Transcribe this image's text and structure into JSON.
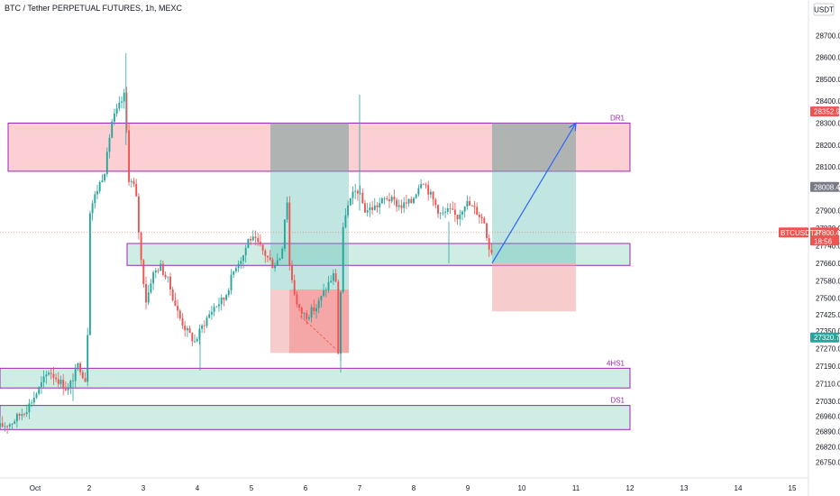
{
  "header": {
    "title": "BTC / Tether PERPETUAL FUTURES, 1h, MEXC",
    "currency": "USDT"
  },
  "colors": {
    "up": "#26a69a",
    "down": "#ef5350",
    "zone_red": "#f7a8ae",
    "zone_green": "#a8dccf",
    "zone_border": "#9c27b0",
    "arrow": "#2962ff",
    "gray": "#9e9e9e"
  },
  "chart_data": {
    "type": "candlestick",
    "title": "BTC / Tether PERPETUAL FUTURES, 1h, MEXC",
    "ylim": [
      26720,
      28780
    ],
    "xlim": [
      0.35,
      15.3
    ],
    "y_ticks": [
      26750,
      26820,
      26890,
      26960,
      27030,
      27110,
      27190,
      27270,
      27350,
      27425,
      27500,
      27580,
      27660,
      27740,
      27820,
      27900,
      28000,
      28100,
      28200,
      28300,
      28400,
      28500,
      28600,
      28700
    ],
    "x_ticks": [
      {
        "label": "Oct",
        "x": 1
      },
      {
        "label": "2",
        "x": 2
      },
      {
        "label": "3",
        "x": 3
      },
      {
        "label": "4",
        "x": 4
      },
      {
        "label": "5",
        "x": 5
      },
      {
        "label": "6",
        "x": 6
      },
      {
        "label": "7",
        "x": 7
      },
      {
        "label": "8",
        "x": 8
      },
      {
        "label": "9",
        "x": 9
      },
      {
        "label": "10",
        "x": 10
      },
      {
        "label": "11",
        "x": 11
      },
      {
        "label": "12",
        "x": 12
      },
      {
        "label": "13",
        "x": 13
      },
      {
        "label": "14",
        "x": 14
      },
      {
        "label": "15",
        "x": 15
      }
    ],
    "price_path": [
      [
        0.35,
        26910
      ],
      [
        0.6,
        26930
      ],
      [
        0.9,
        27000
      ],
      [
        1.1,
        27080
      ],
      [
        1.3,
        27170
      ],
      [
        1.5,
        27120
      ],
      [
        1.65,
        27080
      ],
      [
        1.85,
        27200
      ],
      [
        2.0,
        27110
      ],
      [
        2.05,
        27900
      ],
      [
        2.2,
        28000
      ],
      [
        2.35,
        28100
      ],
      [
        2.45,
        28300
      ],
      [
        2.55,
        28350
      ],
      [
        2.7,
        28430
      ],
      [
        2.78,
        28050
      ],
      [
        2.9,
        28000
      ],
      [
        3.0,
        27680
      ],
      [
        3.1,
        27480
      ],
      [
        3.2,
        27600
      ],
      [
        3.35,
        27650
      ],
      [
        3.5,
        27580
      ],
      [
        3.7,
        27420
      ],
      [
        3.85,
        27350
      ],
      [
        4.0,
        27300
      ],
      [
        4.15,
        27380
      ],
      [
        4.35,
        27460
      ],
      [
        4.55,
        27500
      ],
      [
        4.75,
        27650
      ],
      [
        4.9,
        27700
      ],
      [
        5.0,
        27780
      ],
      [
        5.15,
        27750
      ],
      [
        5.3,
        27700
      ],
      [
        5.45,
        27650
      ],
      [
        5.6,
        27700
      ],
      [
        5.7,
        27980
      ],
      [
        5.75,
        27650
      ],
      [
        5.9,
        27450
      ],
      [
        6.05,
        27420
      ],
      [
        6.25,
        27460
      ],
      [
        6.45,
        27560
      ],
      [
        6.6,
        27620
      ],
      [
        6.65,
        27250
      ],
      [
        6.75,
        27870
      ],
      [
        6.9,
        27960
      ],
      [
        7.0,
        28000
      ],
      [
        7.15,
        27900
      ],
      [
        7.35,
        27920
      ],
      [
        7.55,
        27960
      ],
      [
        7.8,
        27920
      ],
      [
        8.0,
        27940
      ],
      [
        8.2,
        28050
      ],
      [
        8.4,
        27950
      ],
      [
        8.55,
        27880
      ],
      [
        8.7,
        27900
      ],
      [
        8.85,
        27870
      ],
      [
        9.0,
        27940
      ],
      [
        9.2,
        27900
      ],
      [
        9.35,
        27850
      ],
      [
        9.45,
        27720
      ]
    ],
    "zones": [
      {
        "name": "DR1",
        "label": "DR1",
        "x0": 0.5,
        "x1": 12,
        "y0": 28080,
        "y1": 28300,
        "kind": "red",
        "label_x": 11.9
      },
      {
        "name": "mid-demand",
        "label": "",
        "x0": 2.7,
        "x1": 12,
        "y0": 27650,
        "y1": 27750,
        "kind": "green"
      },
      {
        "name": "4HS1",
        "label": "4HS1",
        "x0": 0.35,
        "x1": 12,
        "y0": 27090,
        "y1": 27180,
        "kind": "green",
        "label_x": 11.9
      },
      {
        "name": "DS1",
        "label": "DS1",
        "x0": 0.35,
        "x1": 12,
        "y0": 26900,
        "y1": 27010,
        "kind": "green",
        "label_x": 11.9
      }
    ],
    "positions": [
      {
        "x0": 5.35,
        "x1": 6.8,
        "entry": 27540,
        "target": 28300,
        "stop": 27250,
        "entry_left": 5.7,
        "entry_target": 28080
      },
      {
        "x0": 9.45,
        "x1": 11,
        "entry": 27660,
        "target": 28300,
        "stop": 27440
      }
    ],
    "arrow": {
      "x0": 9.45,
      "y0": 27660,
      "x1": 11.0,
      "y1": 28300
    },
    "dashed": {
      "x0": 5.9,
      "y0": 27420,
      "x1": 6.55,
      "y1": 27270
    },
    "price_tags": [
      {
        "name": "tag-28352",
        "value": 28352.9,
        "text": "28352.9",
        "color": "#ef5350"
      },
      {
        "name": "tag-28008",
        "value": 28008.4,
        "text": "28008.4",
        "color": "#787b86"
      },
      {
        "name": "tag-27800",
        "value": 27800.4,
        "text": "27800.4",
        "color": "#ef5350"
      },
      {
        "name": "tag-27320",
        "value": 27320.7,
        "text": "27320.7",
        "color": "#26a69a"
      }
    ],
    "symbol_tag": "BTCUSDT.P",
    "countdown": "18:56",
    "current_price": 27800.4
  }
}
